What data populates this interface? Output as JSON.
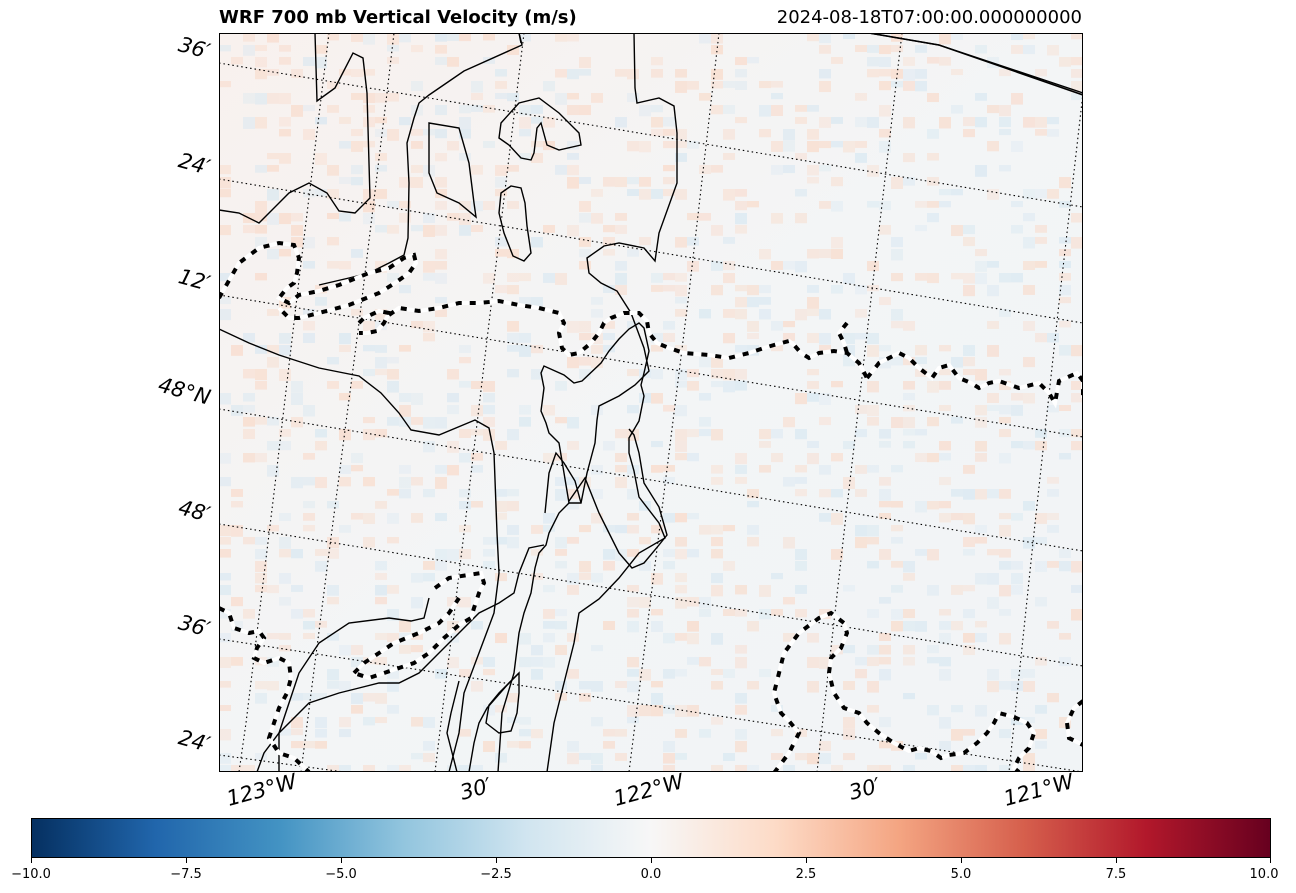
{
  "title": {
    "main": "WRF 700 mb Vertical Velocity (m/s)",
    "valid_time": "2024-08-18T07:00:00.000000000"
  },
  "map": {
    "latitude_labels": [
      "36′",
      "24′",
      "12′",
      "48°N",
      "48′",
      "36′",
      "24′"
    ],
    "longitude_labels": [
      "123°W",
      "30′",
      "122°W",
      "30′",
      "121°W"
    ],
    "colormap": "RdBu_r",
    "coastline_color": "#000000",
    "border_style": "dashed black/white"
  },
  "colorbar": {
    "min": -10.0,
    "max": 10.0,
    "ticks": [
      "−10.0",
      "−7.5",
      "−5.0",
      "−2.5",
      "0.0",
      "2.5",
      "5.0",
      "7.5",
      "10.0"
    ],
    "colors": [
      "#053061",
      "#2166ac",
      "#4393c3",
      "#92c5de",
      "#d1e5f0",
      "#f7f7f7",
      "#fddbc7",
      "#f4a582",
      "#d6604d",
      "#b2182b",
      "#67001f"
    ]
  }
}
